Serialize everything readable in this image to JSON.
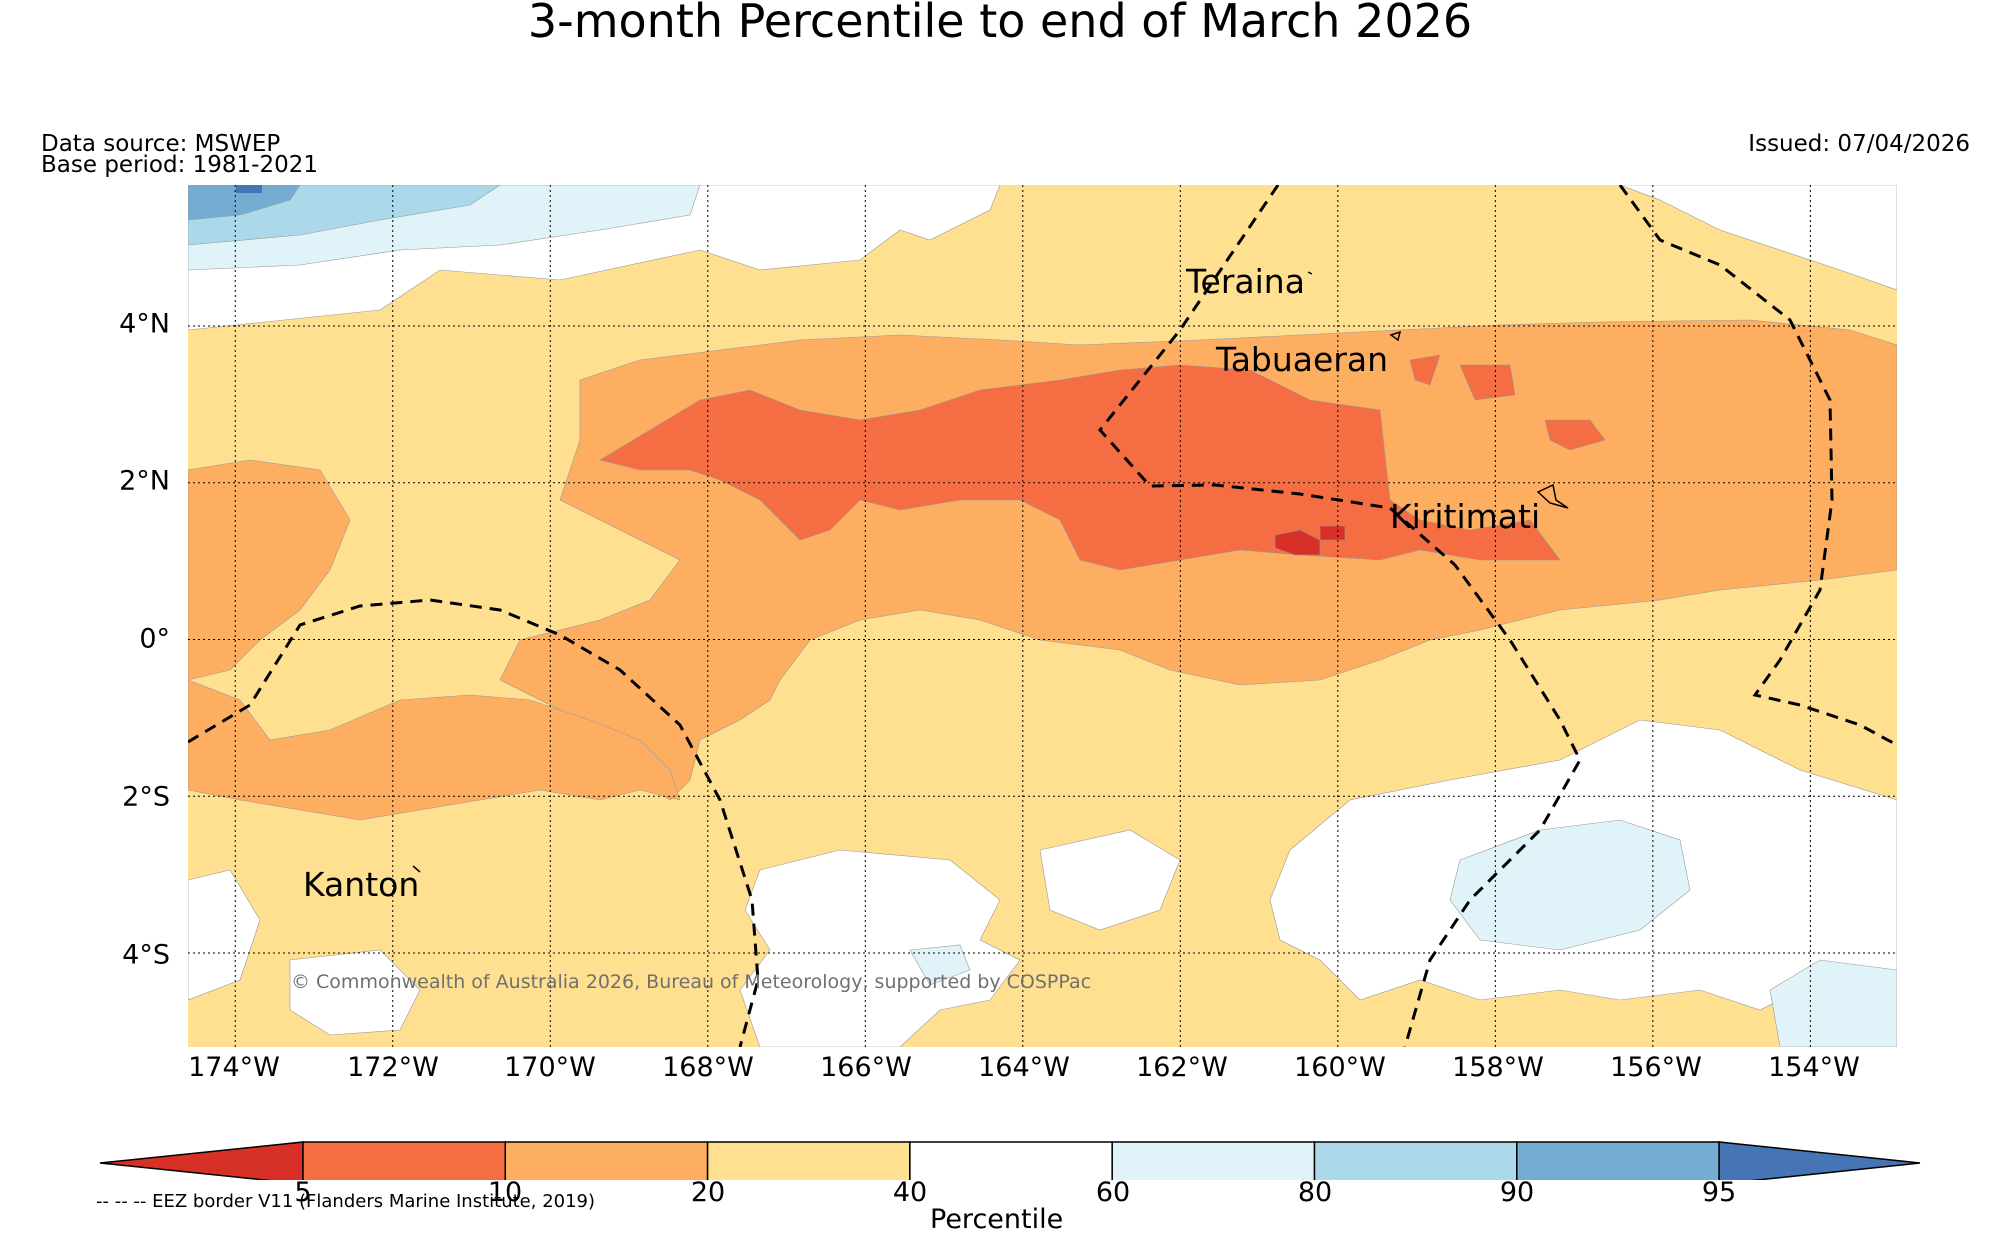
{
  "title": "3-month Percentile to end of March 2026",
  "data_source": "Data source: MSWEP",
  "base_period": "Base period: 1981-2021",
  "issued": "Issued: 07/04/2026",
  "map": {
    "lon_range": [
      -174.6,
      -152.9
    ],
    "lat_range": [
      -5.2,
      5.8
    ],
    "lat_ticks": [
      {
        "value": 4,
        "label": "4°N"
      },
      {
        "value": 2,
        "label": "2°N"
      },
      {
        "value": 0,
        "label": "0°"
      },
      {
        "value": -2,
        "label": "2°S"
      },
      {
        "value": -4,
        "label": "4°S"
      }
    ],
    "lon_ticks": [
      {
        "value": -174,
        "label": "174°W"
      },
      {
        "value": -172,
        "label": "172°W"
      },
      {
        "value": -170,
        "label": "170°W"
      },
      {
        "value": -168,
        "label": "168°W"
      },
      {
        "value": -166,
        "label": "166°W"
      },
      {
        "value": -164,
        "label": "164°W"
      },
      {
        "value": -162,
        "label": "162°W"
      },
      {
        "value": -160,
        "label": "160°W"
      },
      {
        "value": -158,
        "label": "158°W"
      },
      {
        "value": -156,
        "label": "156°W"
      },
      {
        "value": -154,
        "label": "154°W"
      }
    ],
    "places": [
      {
        "name": "Teraina",
        "lon": -162.0,
        "lat": 4.7
      },
      {
        "name": "Tabuaeran",
        "lon": -161.6,
        "lat": 3.7
      },
      {
        "name": "Kiritimati",
        "lon": -159.3,
        "lat": 1.7
      },
      {
        "name": "Kanton",
        "lon": -173.0,
        "lat": -3.1
      }
    ],
    "copyright": "© Commonwealth of Australia 2026, Bureau of Meteorology, supported by COSPPac"
  },
  "colorbar": {
    "label": "Percentile",
    "ticks": [
      "5",
      "10",
      "20",
      "40",
      "60",
      "80",
      "90",
      "95"
    ],
    "colors": {
      "below_5": "#d73027",
      "5_10": "#f46d43",
      "10_20": "#fdae61",
      "20_40": "#fee090",
      "40_60": "#ffffff",
      "60_80": "#e0f3f8",
      "80_90": "#abd9e9",
      "90_95": "#74add1",
      "above_95": "#4575b4"
    }
  },
  "eez_note": "-- -- -- EEZ border V11 (Flanders Marine Institute, 2019)"
}
